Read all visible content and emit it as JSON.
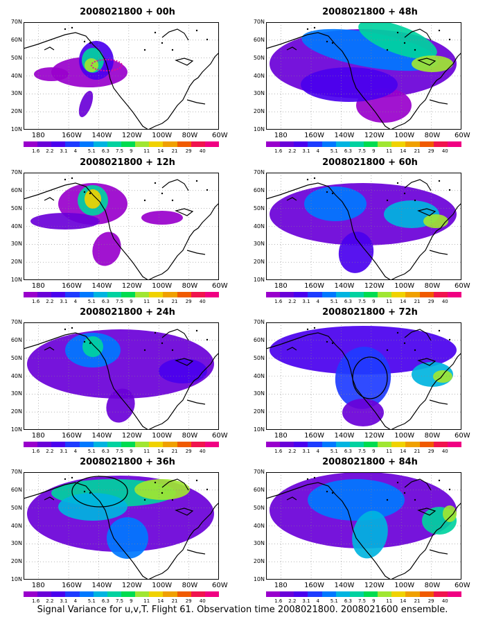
{
  "panels": [
    {
      "title": "2008021800 + 00h"
    },
    {
      "title": "2008021800 + 48h"
    },
    {
      "title": "2008021800 + 12h"
    },
    {
      "title": "2008021800 + 60h"
    },
    {
      "title": "2008021800 + 24h"
    },
    {
      "title": "2008021800 + 72h"
    },
    {
      "title": "2008021800 + 36h"
    },
    {
      "title": "2008021800 + 84h"
    }
  ],
  "lat_labels": [
    "70N",
    "60N",
    "50N",
    "40N",
    "30N",
    "20N",
    "10N"
  ],
  "lon_labels": [
    "180",
    "160W",
    "140W",
    "120W",
    "100W",
    "80W",
    "60W"
  ],
  "colorbar": {
    "labels": [
      "1.6",
      "2.2",
      "3.1",
      "4",
      "5.1",
      "6.3",
      "7.5",
      "9",
      "11",
      "14",
      "21",
      "29",
      "40"
    ],
    "colors": [
      "#9900cc",
      "#6a00d8",
      "#4a00ee",
      "#1e3cff",
      "#0078ff",
      "#00b4e0",
      "#00d2a0",
      "#00dc50",
      "#a0e632",
      "#f0d200",
      "#f0a000",
      "#f05a00",
      "#f0144e",
      "#f00082"
    ]
  },
  "caption": "Signal Variance for u,v,T. Flight 61. Observation time 2008021800. 2008021600 ensemble.",
  "colors": {
    "coast": "#000000",
    "grid": "#888888"
  }
}
